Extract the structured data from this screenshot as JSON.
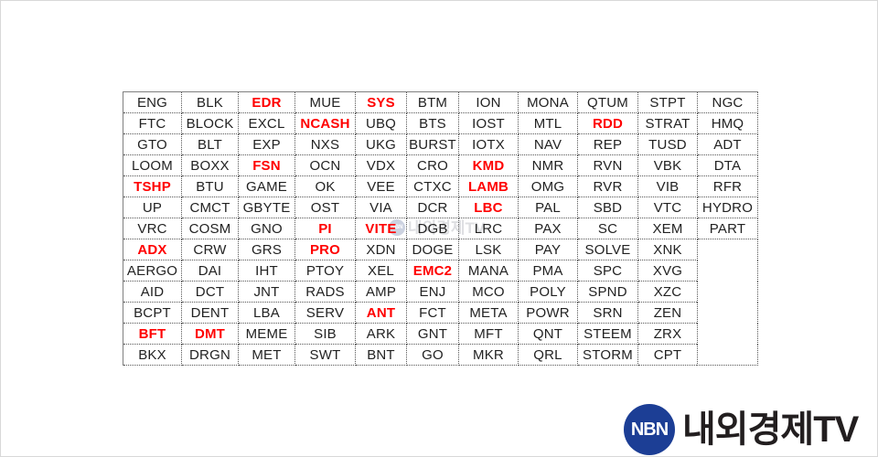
{
  "colors": {
    "highlight_red": "#ff0000",
    "cell_text": "#222222",
    "table_border_dotted": "#555555",
    "table_border_solid": "#7f7f7f",
    "logo_circle_blue": "#1c3e95",
    "logo_text_black": "#221e1f",
    "page_border_gray": "#d8d8d8"
  },
  "table": {
    "rows": [
      [
        "ENG",
        "BLK",
        "EDR",
        "MUE",
        "SYS",
        "BTM",
        "ION",
        "MONA",
        "QTUM",
        "STPT",
        "NGC"
      ],
      [
        "FTC",
        "BLOCK",
        "EXCL",
        "NCASH",
        "UBQ",
        "BTS",
        "IOST",
        "MTL",
        "RDD",
        "STRAT",
        "HMQ"
      ],
      [
        "GTO",
        "BLT",
        "EXP",
        "NXS",
        "UKG",
        "BURST",
        "IOTX",
        "NAV",
        "REP",
        "TUSD",
        "ADT"
      ],
      [
        "LOOM",
        "BOXX",
        "FSN",
        "OCN",
        "VDX",
        "CRO",
        "KMD",
        "NMR",
        "RVN",
        "VBK",
        "DTA"
      ],
      [
        "TSHP",
        "BTU",
        "GAME",
        "OK",
        "VEE",
        "CTXC",
        "LAMB",
        "OMG",
        "RVR",
        "VIB",
        "RFR"
      ],
      [
        "UP",
        "CMCT",
        "GBYTE",
        "OST",
        "VIA",
        "DCR",
        "LBC",
        "PAL",
        "SBD",
        "VTC",
        "HYDRO"
      ],
      [
        "VRC",
        "COSM",
        "GNO",
        "PI",
        "VITE",
        "DGB",
        "LRC",
        "PAX",
        "SC",
        "XEM",
        "PART"
      ],
      [
        "ADX",
        "CRW",
        "GRS",
        "PRO",
        "XDN",
        "DOGE",
        "LSK",
        "PAY",
        "SOLVE",
        "XNK"
      ],
      [
        "AERGO",
        "DAI",
        "IHT",
        "PTOY",
        "XEL",
        "EMC2",
        "MANA",
        "PMA",
        "SPC",
        "XVG"
      ],
      [
        "AID",
        "DCT",
        "JNT",
        "RADS",
        "AMP",
        "ENJ",
        "MCO",
        "POLY",
        "SPND",
        "XZC"
      ],
      [
        "BCPT",
        "DENT",
        "LBA",
        "SERV",
        "ANT",
        "FCT",
        "META",
        "POWR",
        "SRN",
        "ZEN"
      ],
      [
        "BFT",
        "DMT",
        "MEME",
        "SIB",
        "ARK",
        "GNT",
        "MFT",
        "QNT",
        "STEEM",
        "ZRX"
      ],
      [
        "BKX",
        "DRGN",
        "MET",
        "SWT",
        "BNT",
        "GO",
        "MKR",
        "QRL",
        "STORM",
        "CPT"
      ]
    ],
    "red_tickers": [
      "EDR",
      "SYS",
      "NCASH",
      "RDD",
      "FSN",
      "KMD",
      "TSHP",
      "LAMB",
      "LBC",
      "PI",
      "VITE",
      "ADX",
      "PRO",
      "EMC2",
      "ANT",
      "BFT",
      "DMT"
    ]
  },
  "watermark": {
    "circle_label": "NBN",
    "text": "내외경제TV"
  },
  "logo": {
    "circle_label": "NBN",
    "text": "내외경제TV"
  }
}
